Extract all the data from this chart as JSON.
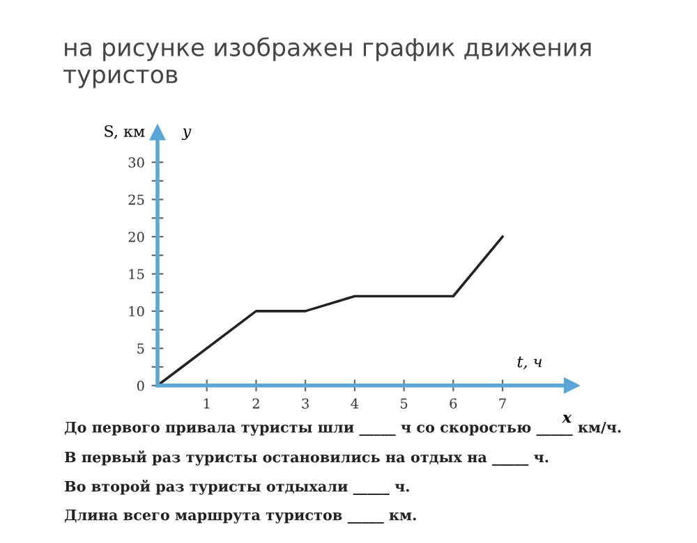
{
  "chart_data": {
    "type": "line",
    "title": "на рисунке изображен график движения туристов",
    "x": [
      0,
      2,
      3,
      4,
      6,
      7
    ],
    "series": [
      {
        "color": "#222222",
        "values": [
          0,
          10,
          10,
          12,
          12,
          20
        ]
      }
    ],
    "xlabel": "t, ч",
    "ylabel": "S, км",
    "xlim": [
      0,
      8.4
    ],
    "ylim": [
      0,
      34
    ],
    "xticks": [
      1,
      2,
      3,
      4,
      5,
      6,
      7
    ],
    "yticks": [
      0,
      {
        "value": 2.5,
        "label": null
      },
      5,
      {
        "value": 7.5,
        "label": null
      },
      10,
      {
        "value": 12.5,
        "label": null
      },
      15,
      {
        "value": 17.5,
        "label": null
      },
      20,
      {
        "value": 22.5,
        "label": null
      },
      25,
      {
        "value": 27.5,
        "label": null
      },
      30
    ],
    "grid": false,
    "legend": false,
    "marker": "none",
    "line_style": "solid",
    "annotations": [
      "y",
      "x",
      "До первого привала туристы шли _____ ч со скоростью _____ км/ч.",
      "В первый раз туристы остановились на отдых на _____ ч.",
      "Во второй раз туристы отдыхали _____ ч.",
      "Длина всего маршрута туристов _____ км."
    ]
  }
}
